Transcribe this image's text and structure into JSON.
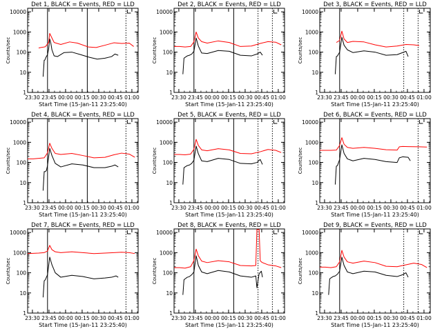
{
  "page": {
    "x_tick_labels": [
      "23:30",
      "23:45",
      "00:00",
      "00:15",
      "00:30",
      "00:45",
      "01:00"
    ],
    "y_tick_labels": [
      "1",
      "10",
      "100",
      "1000",
      "10000"
    ],
    "ylabel": "Counts/sec",
    "xlabel": "Start Time (15-Jan-11 23:25:40)",
    "colors": {
      "events": "#000000",
      "lld": "#ff0000",
      "axes": "#000000"
    }
  },
  "chart_data": [
    {
      "type": "line",
      "title": "Det 1, BLACK = Events, RED = LLD",
      "xlabel": "Start Time (15-Jan-11 23:25:40)",
      "ylabel": "Counts/sec",
      "xlim_min_after_start": [
        0,
        100
      ],
      "ylim": [
        1,
        15000
      ],
      "yscale": "log",
      "solid_markers_min": [
        18,
        54
      ],
      "dotted_markers_min": [
        89
      ],
      "series": [
        {
          "color": "red",
          "t_min": [
            10,
            12,
            15,
            16,
            19,
            20,
            22,
            24,
            30,
            38,
            45,
            55,
            62,
            70,
            78,
            85,
            92,
            96
          ],
          "values": [
            160,
            170,
            180,
            185,
            300,
            850,
            500,
            300,
            240,
            320,
            280,
            180,
            170,
            220,
            290,
            270,
            280,
            190
          ]
        },
        {
          "color": "black",
          "t_min": [
            14,
            15,
            15.5,
            16,
            16.5,
            17,
            18,
            19,
            20,
            21,
            22,
            24,
            27,
            33,
            40,
            48,
            56,
            63,
            70,
            76,
            79,
            82
          ],
          "values": [
            6,
            40,
            40,
            45,
            55,
            60,
            75,
            140,
            450,
            280,
            130,
            65,
            60,
            95,
            100,
            75,
            55,
            45,
            50,
            60,
            80,
            70
          ]
        }
      ]
    },
    {
      "type": "line",
      "title": "Det 2, BLACK = Events, RED = LLD",
      "xlabel": "Start Time (15-Jan-11 23:25:40)",
      "ylabel": "Counts/sec",
      "xlim_min_after_start": [
        0,
        100
      ],
      "ylim": [
        1,
        15000
      ],
      "yscale": "log",
      "solid_markers_min": [
        18,
        54
      ],
      "dotted_markers_min": [
        76,
        89
      ],
      "series": [
        {
          "color": "red",
          "t_min": [
            0,
            5,
            10,
            15,
            18,
            20,
            22,
            25,
            30,
            40,
            50,
            60,
            70,
            78,
            85,
            92,
            97
          ],
          "values": [
            190,
            190,
            180,
            190,
            320,
            1000,
            500,
            330,
            280,
            360,
            300,
            190,
            200,
            270,
            330,
            310,
            230
          ]
        },
        {
          "color": "black",
          "t_min": [
            8,
            9,
            10,
            12,
            14,
            16,
            18,
            20,
            22,
            25,
            30,
            40,
            50,
            60,
            70,
            75,
            78,
            80
          ],
          "values": [
            8,
            50,
            55,
            65,
            70,
            80,
            110,
            500,
            200,
            90,
            85,
            120,
            110,
            70,
            65,
            80,
            100,
            70
          ]
        }
      ]
    },
    {
      "type": "line",
      "title": "Det 3, BLACK = Events, RED = LLD",
      "xlabel": "Start Time (15-Jan-11 23:25:40)",
      "ylabel": "Counts/sec",
      "xlim_min_after_start": [
        0,
        100
      ],
      "ylim": [
        1,
        15000
      ],
      "yscale": "log",
      "solid_markers_min": [
        18
      ],
      "dotted_markers_min": [
        76,
        89
      ],
      "series": [
        {
          "color": "red",
          "t_min": [
            15,
            18,
            20,
            22,
            25,
            30,
            40,
            50,
            60,
            70,
            78,
            85,
            90
          ],
          "values": [
            300,
            380,
            1100,
            450,
            300,
            340,
            320,
            230,
            180,
            200,
            240,
            230,
            210
          ]
        },
        {
          "color": "black",
          "t_min": [
            14,
            15,
            16,
            18,
            20,
            22,
            25,
            30,
            40,
            50,
            60,
            70,
            75,
            78,
            80
          ],
          "values": [
            8,
            60,
            65,
            100,
            550,
            220,
            130,
            95,
            115,
            100,
            70,
            75,
            95,
            110,
            60
          ]
        }
      ]
    },
    {
      "type": "line",
      "title": "Det 4, BLACK = Events, RED = LLD",
      "xlabel": "Start Time (15-Jan-11 23:25:40)",
      "ylabel": "Counts/sec",
      "xlim_min_after_start": [
        0,
        100
      ],
      "ylim": [
        1,
        15000
      ],
      "yscale": "log",
      "solid_markers_min": [
        18,
        54
      ],
      "dotted_markers_min": [
        89
      ],
      "series": [
        {
          "color": "red",
          "t_min": [
            0,
            5,
            10,
            15,
            18,
            20,
            22,
            25,
            30,
            40,
            50,
            60,
            70,
            78,
            85,
            92,
            97
          ],
          "values": [
            150,
            150,
            160,
            170,
            300,
            900,
            500,
            280,
            250,
            280,
            220,
            170,
            180,
            240,
            290,
            260,
            180
          ]
        },
        {
          "color": "black",
          "t_min": [
            14,
            15,
            16,
            17,
            18,
            20,
            22,
            25,
            30,
            40,
            50,
            60,
            70,
            76,
            79,
            82
          ],
          "values": [
            4,
            35,
            35,
            40,
            70,
            500,
            220,
            90,
            60,
            85,
            75,
            55,
            55,
            65,
            75,
            60
          ]
        }
      ]
    },
    {
      "type": "line",
      "title": "Det 5, BLACK = Events, RED = LLD",
      "xlabel": "Start Time (15-Jan-11 23:25:40)",
      "ylabel": "Counts/sec",
      "xlim_min_after_start": [
        0,
        100
      ],
      "ylim": [
        1,
        15000
      ],
      "yscale": "log",
      "solid_markers_min": [
        18,
        54
      ],
      "dotted_markers_min": [
        76,
        89
      ],
      "series": [
        {
          "color": "red",
          "t_min": [
            0,
            5,
            10,
            15,
            18,
            20,
            22,
            25,
            30,
            40,
            50,
            60,
            70,
            78,
            85,
            92,
            97
          ],
          "values": [
            250,
            250,
            240,
            260,
            450,
            1400,
            700,
            420,
            380,
            480,
            420,
            280,
            270,
            340,
            440,
            400,
            310
          ]
        },
        {
          "color": "black",
          "t_min": [
            8,
            9,
            10,
            12,
            14,
            16,
            18,
            20,
            22,
            25,
            30,
            40,
            50,
            60,
            70,
            75,
            78,
            80
          ],
          "values": [
            8,
            55,
            60,
            70,
            75,
            90,
            130,
            650,
            270,
            120,
            110,
            160,
            140,
            90,
            85,
            100,
            140,
            80
          ]
        }
      ]
    },
    {
      "type": "line",
      "title": "Det 6, BLACK = Events, RED = LLD",
      "xlabel": "Start Time (15-Jan-11 23:25:40)",
      "ylabel": "Counts/sec",
      "xlim_min_after_start": [
        0,
        100
      ],
      "ylim": [
        1,
        15000
      ],
      "yscale": "log",
      "solid_markers_min": [
        18
      ],
      "dotted_markers_min": [
        89
      ],
      "series": [
        {
          "color": "red",
          "t_min": [
            0,
            5,
            10,
            15,
            18,
            20,
            22,
            25,
            30,
            40,
            50,
            60,
            70,
            72,
            75,
            80,
            90,
            97
          ],
          "values": [
            400,
            400,
            400,
            410,
            700,
            1700,
            800,
            560,
            500,
            560,
            500,
            430,
            410,
            600,
            620,
            610,
            600,
            580
          ]
        },
        {
          "color": "black",
          "t_min": [
            14,
            15,
            16,
            18,
            20,
            22,
            25,
            30,
            40,
            50,
            60,
            70,
            72,
            75,
            80,
            82
          ],
          "values": [
            8,
            65,
            70,
            140,
            750,
            280,
            150,
            120,
            160,
            140,
            110,
            100,
            170,
            190,
            180,
            120
          ]
        }
      ]
    },
    {
      "type": "line",
      "title": "Det 7, BLACK = Events, RED = LLD",
      "xlabel": "Start Time (15-Jan-11 23:25:40)",
      "ylabel": "Counts/sec",
      "xlim_min_after_start": [
        0,
        100
      ],
      "ylim": [
        1,
        15000
      ],
      "yscale": "log",
      "solid_markers_min": [
        18
      ],
      "dotted_markers_min": [
        89
      ],
      "series": [
        {
          "color": "red",
          "t_min": [
            0,
            10,
            15,
            18,
            20,
            22,
            25,
            30,
            40,
            50,
            60,
            70,
            78,
            85,
            92,
            97
          ],
          "values": [
            900,
            950,
            1000,
            1200,
            2300,
            1400,
            1100,
            1000,
            1100,
            1000,
            900,
            950,
            1000,
            1050,
            1000,
            900
          ]
        },
        {
          "color": "black",
          "t_min": [
            14,
            15,
            16,
            18,
            20,
            22,
            25,
            30,
            40,
            50,
            60,
            70,
            76,
            80,
            82
          ],
          "values": [
            6,
            40,
            45,
            80,
            600,
            250,
            100,
            60,
            75,
            65,
            50,
            55,
            60,
            70,
            60
          ]
        }
      ]
    },
    {
      "type": "line",
      "title": "Det 8, BLACK = Events, RED = LLD",
      "xlabel": "Start Time (15-Jan-11 23:25:40)",
      "ylabel": "Counts/sec",
      "xlim_min_after_start": [
        0,
        100
      ],
      "ylim": [
        1,
        15000
      ],
      "yscale": "log",
      "solid_markers_min": [
        18,
        54
      ],
      "dotted_markers_min": [
        76,
        89
      ],
      "series": [
        {
          "color": "red",
          "t_min": [
            0,
            5,
            10,
            15,
            18,
            20,
            22,
            25,
            30,
            40,
            50,
            60,
            70,
            74,
            75,
            76,
            77,
            78,
            79,
            80,
            85,
            92,
            97
          ],
          "values": [
            180,
            180,
            170,
            200,
            400,
            1500,
            700,
            380,
            320,
            400,
            350,
            230,
            220,
            230,
            14000,
            14000,
            14000,
            400,
            350,
            320,
            250,
            220,
            180
          ]
        },
        {
          "color": "black",
          "t_min": [
            8,
            9,
            10,
            12,
            14,
            16,
            18,
            20,
            22,
            25,
            30,
            40,
            50,
            60,
            70,
            74,
            75,
            77,
            79,
            80
          ],
          "values": [
            8,
            45,
            50,
            60,
            65,
            80,
            110,
            700,
            230,
            110,
            90,
            130,
            110,
            70,
            60,
            70,
            18,
            90,
            120,
            60
          ]
        }
      ]
    },
    {
      "type": "line",
      "title": "Det 9, BLACK = Events, RED = LLD",
      "xlabel": "Start Time (15-Jan-11 23:25:40)",
      "ylabel": "Counts/sec",
      "xlim_min_after_start": [
        0,
        100
      ],
      "ylim": [
        1,
        15000
      ],
      "yscale": "log",
      "solid_markers_min": [
        18
      ],
      "dotted_markers_min": [
        76,
        89
      ],
      "series": [
        {
          "color": "red",
          "t_min": [
            0,
            5,
            10,
            15,
            18,
            20,
            22,
            25,
            30,
            40,
            50,
            60,
            70,
            78,
            85,
            92,
            97
          ],
          "values": [
            190,
            190,
            180,
            200,
            350,
            1300,
            600,
            350,
            300,
            380,
            320,
            210,
            200,
            250,
            300,
            260,
            180
          ]
        },
        {
          "color": "black",
          "t_min": [
            8,
            9,
            10,
            12,
            14,
            16,
            18,
            20,
            22,
            25,
            30,
            40,
            50,
            60,
            70,
            75,
            78,
            80
          ],
          "values": [
            8,
            50,
            55,
            65,
            70,
            85,
            120,
            600,
            230,
            110,
            90,
            120,
            110,
            75,
            65,
            80,
            100,
            60
          ]
        }
      ]
    }
  ]
}
